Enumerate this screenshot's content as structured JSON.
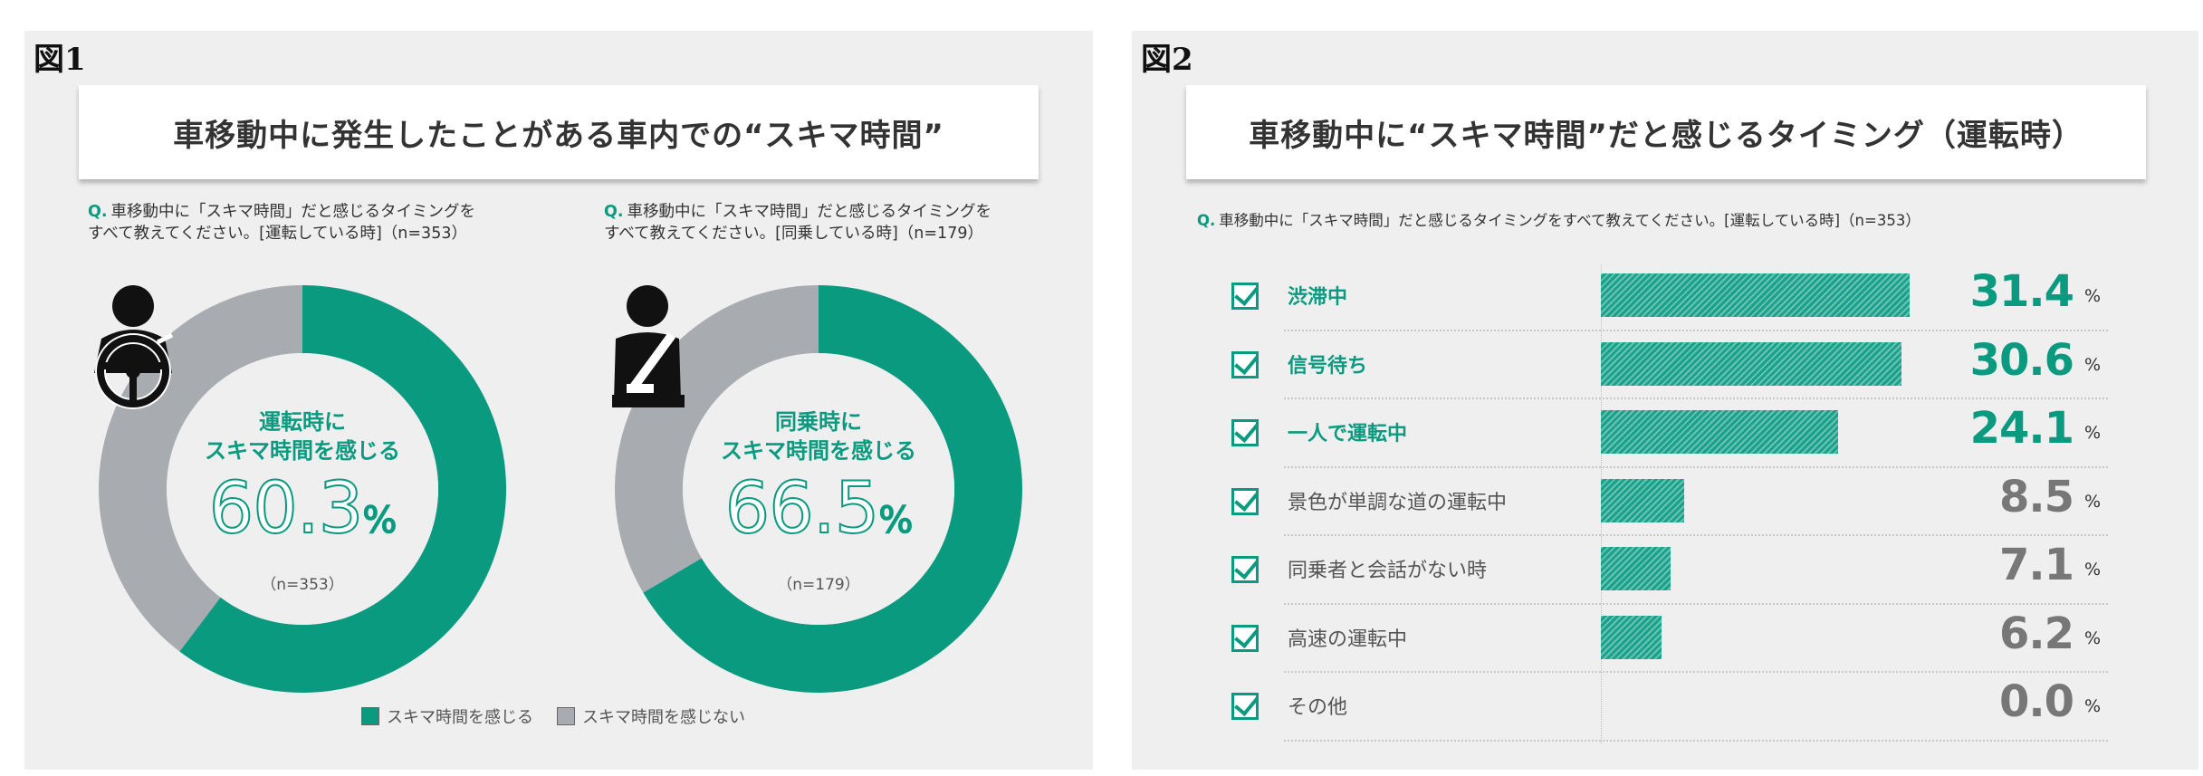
{
  "colors": {
    "teal": "#0a9a80",
    "gray": "#a8abb0",
    "accent_text": "#0a9a80",
    "muted_text": "#777777"
  },
  "figure1": {
    "label": "図1",
    "title": "車移動中に発生したことがある車内での“スキマ時間”",
    "charts": [
      {
        "question_mark": "Q.",
        "question": "車移動中に「スキマ時間」だと感じるタイミングを\nすべて教えてください。[運転している時]（n=353）",
        "center_label": "運転時に\nスキマ時間を感じる",
        "center_value": "60.3",
        "center_unit": "%",
        "center_n": "（n=353）",
        "icon": "driver-steering-wheel-icon"
      },
      {
        "question_mark": "Q.",
        "question": "車移動中に「スキマ時間」だと感じるタイミングを\nすべて教えてください。[同乗している時]（n=179）",
        "center_label": "同乗時に\nスキマ時間を感じる",
        "center_value": "66.5",
        "center_unit": "%",
        "center_n": "（n=179）",
        "icon": "passenger-seatbelt-icon"
      }
    ],
    "legend": [
      "スキマ時間を感じる",
      "スキマ時間を感じない"
    ]
  },
  "figure2": {
    "label": "図2",
    "title": "車移動中に“スキマ時間”だと感じるタイミング（運転時）",
    "question_mark": "Q.",
    "question": "車移動中に「スキマ時間」だと感じるタイミングをすべて教えてください。[運転している時]（n=353）",
    "unit": "%"
  },
  "chart_data": [
    {
      "type": "pie",
      "title": "運転時にスキマ時間を感じる",
      "n": 353,
      "slices": [
        {
          "name": "スキマ時間を感じる",
          "value": 60.3
        },
        {
          "name": "スキマ時間を感じない",
          "value": 39.7
        }
      ]
    },
    {
      "type": "pie",
      "title": "同乗時にスキマ時間を感じる",
      "n": 179,
      "slices": [
        {
          "name": "スキマ時間を感じる",
          "value": 66.5
        },
        {
          "name": "スキマ時間を感じない",
          "value": 33.5
        }
      ]
    },
    {
      "type": "bar",
      "title": "車移動中に“スキマ時間”だと感じるタイミング（運転時）",
      "categories": [
        "渋滞中",
        "信号待ち",
        "一人で運転中",
        "景色が単調な道の運転中",
        "同乗者と会話がない時",
        "高速の運転中",
        "その他"
      ],
      "values": [
        31.4,
        30.6,
        24.1,
        8.5,
        7.1,
        6.2,
        0.0
      ],
      "value_labels": [
        "31.4",
        "30.6",
        "24.1",
        "8.5",
        "7.1",
        "6.2",
        "0.0"
      ],
      "highlight_top": 3,
      "xlim": [
        0,
        35
      ]
    }
  ]
}
